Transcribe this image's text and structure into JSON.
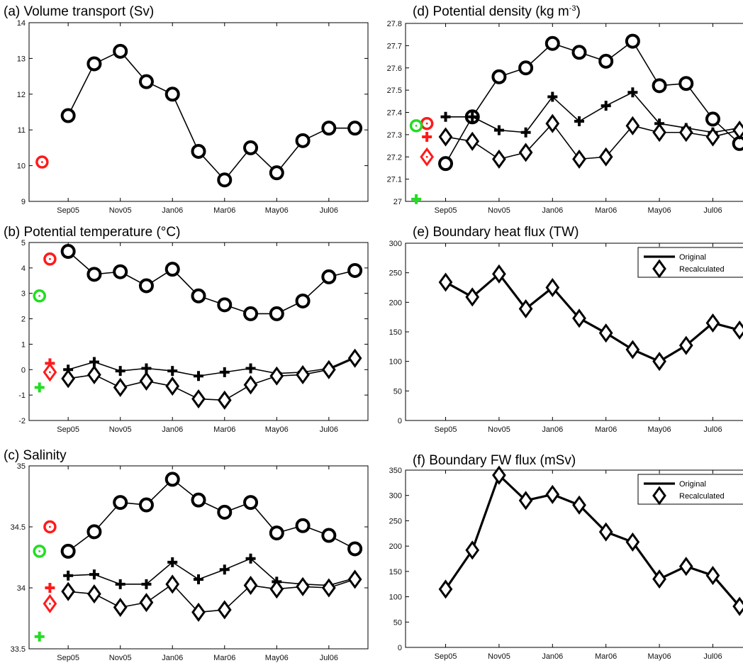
{
  "colors": {
    "black": "#000000",
    "red": "#ff1a1a",
    "green": "#22dd22"
  },
  "chart_data": [
    {
      "id": "a",
      "type": "line",
      "title": "(a) Volume transport (Sv)",
      "xticks": [
        "Sep05",
        "Nov05",
        "Jan06",
        "Mar06",
        "May06",
        "Jul06"
      ],
      "xtick_positions": [
        1,
        3,
        5,
        7,
        9,
        11
      ],
      "xlim": [
        -0.5,
        12.5
      ],
      "ylim": [
        9,
        14
      ],
      "yticks": [
        "9",
        "10",
        "11",
        "12",
        "13",
        "14"
      ],
      "series": [
        {
          "marker": "circle",
          "color": "#000000",
          "line": true,
          "x": [
            1,
            2,
            3,
            4,
            5,
            6,
            7,
            8,
            9,
            10,
            11,
            12
          ],
          "y": [
            11.4,
            12.85,
            13.2,
            12.35,
            12.0,
            10.4,
            9.6,
            10.5,
            9.8,
            10.7,
            11.05,
            11.05
          ]
        },
        {
          "marker": "circle-dot",
          "color": "#ff1a1a",
          "line": false,
          "x": [
            0
          ],
          "y": [
            10.1
          ]
        }
      ]
    },
    {
      "id": "b",
      "type": "line",
      "title": "(b) Potential temperature (°C)",
      "xticks": [
        "Sep05",
        "Nov05",
        "Jan06",
        "Mar06",
        "May06",
        "Jul06"
      ],
      "xtick_positions": [
        1,
        3,
        5,
        7,
        9,
        11
      ],
      "xlim": [
        -0.5,
        12.5
      ],
      "ylim": [
        -2,
        5
      ],
      "yticks": [
        "-2",
        "-1",
        "0",
        "1",
        "2",
        "3",
        "4",
        "5"
      ],
      "series": [
        {
          "marker": "circle",
          "color": "#000000",
          "line": true,
          "x": [
            1,
            2,
            3,
            4,
            5,
            6,
            7,
            8,
            9,
            10,
            11,
            12
          ],
          "y": [
            4.65,
            3.75,
            3.85,
            3.3,
            3.95,
            2.9,
            2.55,
            2.2,
            2.2,
            2.7,
            3.65,
            3.9
          ]
        },
        {
          "marker": "plus",
          "color": "#000000",
          "line": true,
          "x": [
            1,
            2,
            3,
            4,
            5,
            6,
            7,
            8,
            9,
            10,
            11,
            12
          ],
          "y": [
            0.0,
            0.3,
            -0.05,
            0.05,
            -0.05,
            -0.25,
            -0.1,
            0.05,
            -0.15,
            -0.1,
            0.05,
            0.5
          ]
        },
        {
          "marker": "diamond",
          "color": "#000000",
          "line": true,
          "x": [
            1,
            2,
            3,
            4,
            5,
            6,
            7,
            8,
            9,
            10,
            11,
            12
          ],
          "y": [
            -0.35,
            -0.2,
            -0.7,
            -0.45,
            -0.65,
            -1.15,
            -1.2,
            -0.6,
            -0.25,
            -0.2,
            0.0,
            0.45
          ]
        },
        {
          "marker": "circle-dot",
          "color": "#ff1a1a",
          "line": false,
          "x": [
            0.3
          ],
          "y": [
            4.35
          ]
        },
        {
          "marker": "circle-dot",
          "color": "#22dd22",
          "line": false,
          "x": [
            -0.1
          ],
          "y": [
            2.9
          ]
        },
        {
          "marker": "plus",
          "color": "#ff1a1a",
          "line": false,
          "x": [
            0.3
          ],
          "y": [
            0.25
          ]
        },
        {
          "marker": "diamond-dot",
          "color": "#ff1a1a",
          "line": false,
          "x": [
            0.3
          ],
          "y": [
            -0.1
          ]
        },
        {
          "marker": "plus",
          "color": "#22dd22",
          "line": false,
          "x": [
            -0.1
          ],
          "y": [
            -0.7
          ]
        }
      ]
    },
    {
      "id": "c",
      "type": "line",
      "title": "(c) Salinity",
      "xticks": [
        "Sep05",
        "Nov05",
        "Jan06",
        "Mar06",
        "May06",
        "Jul06"
      ],
      "xtick_positions": [
        1,
        3,
        5,
        7,
        9,
        11
      ],
      "xlim": [
        -0.5,
        12.5
      ],
      "ylim": [
        33.5,
        35
      ],
      "yticks": [
        "33.5",
        "34",
        "34.5",
        "35"
      ],
      "series": [
        {
          "marker": "circle",
          "color": "#000000",
          "line": true,
          "x": [
            1,
            2,
            3,
            4,
            5,
            6,
            7,
            8,
            9,
            10,
            11,
            12
          ],
          "y": [
            34.3,
            34.46,
            34.7,
            34.68,
            34.89,
            34.72,
            34.62,
            34.7,
            34.45,
            34.51,
            34.43,
            34.32
          ]
        },
        {
          "marker": "plus",
          "color": "#000000",
          "line": true,
          "x": [
            1,
            2,
            3,
            4,
            5,
            6,
            7,
            8,
            9,
            10,
            11,
            12
          ],
          "y": [
            34.1,
            34.11,
            34.03,
            34.03,
            34.21,
            34.07,
            34.15,
            34.24,
            34.05,
            34.03,
            34.02,
            34.08
          ]
        },
        {
          "marker": "diamond",
          "color": "#000000",
          "line": true,
          "x": [
            1,
            2,
            3,
            4,
            5,
            6,
            7,
            8,
            9,
            10,
            11,
            12
          ],
          "y": [
            33.97,
            33.95,
            33.84,
            33.88,
            34.03,
            33.8,
            33.82,
            34.02,
            33.99,
            34.01,
            34.0,
            34.07
          ]
        },
        {
          "marker": "circle-dot",
          "color": "#ff1a1a",
          "line": false,
          "x": [
            0.3
          ],
          "y": [
            34.5
          ]
        },
        {
          "marker": "circle-dot",
          "color": "#22dd22",
          "line": false,
          "x": [
            -0.1
          ],
          "y": [
            34.3
          ]
        },
        {
          "marker": "plus",
          "color": "#ff1a1a",
          "line": false,
          "x": [
            0.3
          ],
          "y": [
            34.0
          ]
        },
        {
          "marker": "diamond-dot",
          "color": "#ff1a1a",
          "line": false,
          "x": [
            0.3
          ],
          "y": [
            33.87
          ]
        },
        {
          "marker": "plus",
          "color": "#22dd22",
          "line": false,
          "x": [
            -0.1
          ],
          "y": [
            33.6
          ]
        }
      ]
    },
    {
      "id": "d",
      "type": "line",
      "title": "(d) Potential density (kg m",
      "title_sup": "-3",
      "title_end": ")",
      "xticks": [
        "Sep05",
        "Nov05",
        "Jan06",
        "Mar06",
        "May06",
        "Jul06"
      ],
      "xtick_positions": [
        1,
        3,
        5,
        7,
        9,
        11
      ],
      "xlim": [
        -0.5,
        12.5
      ],
      "ylim": [
        27,
        27.8
      ],
      "yticks": [
        "27",
        "27.1",
        "27.2",
        "27.3",
        "27.4",
        "27.5",
        "27.6",
        "27.7",
        "27.8"
      ],
      "series": [
        {
          "marker": "circle",
          "color": "#000000",
          "line": true,
          "x": [
            1,
            2,
            3,
            4,
            5,
            6,
            7,
            8,
            9,
            10,
            11,
            12
          ],
          "y": [
            27.17,
            27.38,
            27.56,
            27.6,
            27.71,
            27.67,
            27.63,
            27.72,
            27.52,
            27.53,
            27.37,
            27.26
          ]
        },
        {
          "marker": "plus",
          "color": "#000000",
          "line": true,
          "x": [
            1,
            2,
            3,
            4,
            5,
            6,
            7,
            8,
            9,
            10,
            11,
            12
          ],
          "y": [
            27.38,
            27.38,
            27.32,
            27.31,
            27.47,
            27.36,
            27.43,
            27.49,
            27.35,
            27.33,
            27.31,
            27.33
          ]
        },
        {
          "marker": "diamond",
          "color": "#000000",
          "line": true,
          "x": [
            1,
            2,
            3,
            4,
            5,
            6,
            7,
            8,
            9,
            10,
            11,
            12
          ],
          "y": [
            27.29,
            27.27,
            27.19,
            27.22,
            27.35,
            27.19,
            27.2,
            27.34,
            27.31,
            27.31,
            27.29,
            27.32
          ]
        },
        {
          "marker": "circle-dot",
          "color": "#ff1a1a",
          "line": false,
          "x": [
            0.3
          ],
          "y": [
            27.35
          ]
        },
        {
          "marker": "circle-dot",
          "color": "#22dd22",
          "line": false,
          "x": [
            -0.1
          ],
          "y": [
            27.34
          ]
        },
        {
          "marker": "plus",
          "color": "#ff1a1a",
          "line": false,
          "x": [
            0.3
          ],
          "y": [
            27.29
          ]
        },
        {
          "marker": "diamond-dot",
          "color": "#ff1a1a",
          "line": false,
          "x": [
            0.3
          ],
          "y": [
            27.2
          ]
        },
        {
          "marker": "plus",
          "color": "#22dd22",
          "line": false,
          "x": [
            -0.1
          ],
          "y": [
            27.01
          ]
        }
      ]
    },
    {
      "id": "e",
      "type": "line",
      "title": "(e) Boundary heat flux (TW)",
      "xticks": [
        "Sep05",
        "Nov05",
        "Jan06",
        "Mar06",
        "May06",
        "Jul06"
      ],
      "xtick_positions": [
        1,
        3,
        5,
        7,
        9,
        11
      ],
      "xlim": [
        -0.5,
        12.5
      ],
      "ylim": [
        0,
        300
      ],
      "yticks": [
        "0",
        "50",
        "100",
        "150",
        "200",
        "250",
        "300"
      ],
      "legend": {
        "position": "top-right",
        "entries": [
          "Original",
          "Recalculated"
        ]
      },
      "series": [
        {
          "name": "Original",
          "marker": "none",
          "color": "#000000",
          "line": true,
          "width": 3.2,
          "x": [
            1,
            2,
            3,
            4,
            5,
            6,
            7,
            8,
            9,
            10,
            11,
            12
          ],
          "y": [
            234,
            209,
            248,
            189,
            225,
            173,
            148,
            120,
            100,
            127,
            165,
            153
          ]
        },
        {
          "name": "Recalculated",
          "marker": "diamond",
          "color": "#000000",
          "line": true,
          "width": 1,
          "x": [
            1,
            2,
            3,
            4,
            5,
            6,
            7,
            8,
            9,
            10,
            11,
            12
          ],
          "y": [
            234,
            209,
            248,
            189,
            225,
            173,
            148,
            120,
            100,
            127,
            165,
            153
          ]
        }
      ]
    },
    {
      "id": "f",
      "type": "line",
      "title": "(f) Boundary FW flux (mSv)",
      "xticks": [
        "Sep05",
        "Nov05",
        "Jan06",
        "Mar06",
        "May06",
        "Jul06"
      ],
      "xtick_positions": [
        1,
        3,
        5,
        7,
        9,
        11
      ],
      "xlim": [
        -0.5,
        12.5
      ],
      "ylim": [
        0,
        350
      ],
      "yticks": [
        "0",
        "50",
        "100",
        "150",
        "200",
        "250",
        "300",
        "350"
      ],
      "legend": {
        "position": "top-right",
        "entries": [
          "Original",
          "Recalculated"
        ]
      },
      "series": [
        {
          "name": "Original",
          "marker": "none",
          "color": "#000000",
          "line": true,
          "width": 3.2,
          "x": [
            1,
            2,
            3,
            4,
            5,
            6,
            7,
            8,
            9,
            10,
            11,
            12
          ],
          "y": [
            115,
            192,
            340,
            290,
            302,
            281,
            228,
            208,
            135,
            160,
            142,
            81
          ]
        },
        {
          "name": "Recalculated",
          "marker": "diamond",
          "color": "#000000",
          "line": true,
          "width": 1,
          "x": [
            1,
            2,
            3,
            4,
            5,
            6,
            7,
            8,
            9,
            10,
            11,
            12
          ],
          "y": [
            115,
            192,
            340,
            290,
            302,
            281,
            228,
            208,
            135,
            160,
            142,
            81
          ]
        }
      ]
    }
  ]
}
